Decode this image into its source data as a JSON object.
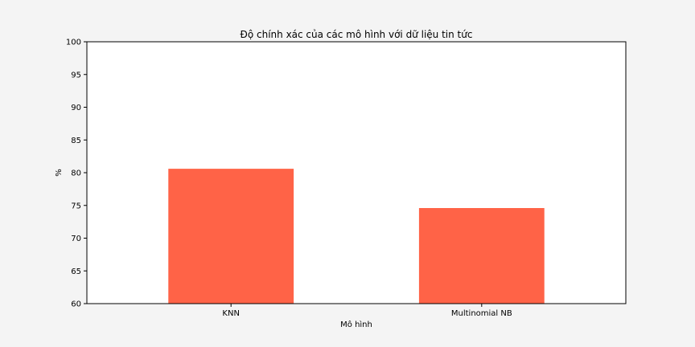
{
  "chart_data": {
    "type": "bar",
    "title": "Độ chính xác của các mô hình với dữ liệu tin tức",
    "xlabel": "Mô hình",
    "ylabel": "%",
    "categories": [
      "KNN",
      "Multinomial NB"
    ],
    "values": [
      80.6,
      74.6
    ],
    "ylim": [
      60,
      100
    ],
    "yticks": [
      60,
      65,
      70,
      75,
      80,
      85,
      90,
      95,
      100
    ],
    "grid": false,
    "colors": {
      "bar": "#ff6347",
      "figure_background": "#f4f4f4",
      "axes_background": "#ffffff"
    }
  }
}
